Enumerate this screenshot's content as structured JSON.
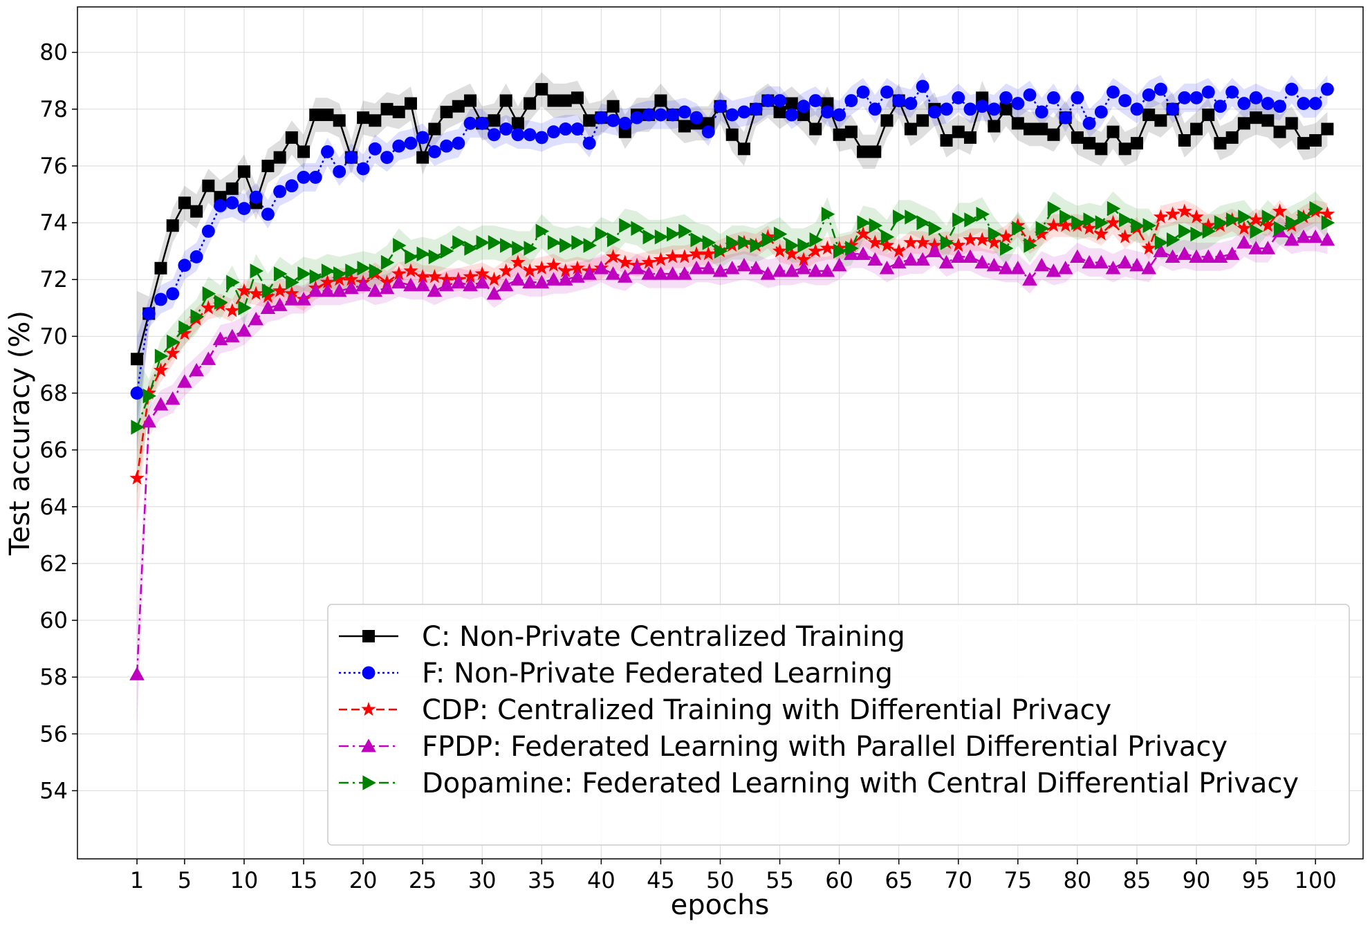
{
  "chart_data": {
    "type": "line",
    "xlabel": "epochs",
    "ylabel": "Test accuracy (%)",
    "xlim": [
      -4,
      104
    ],
    "ylim": [
      51.6,
      81.6
    ],
    "xticks": [
      1,
      5,
      10,
      15,
      20,
      25,
      30,
      35,
      40,
      45,
      50,
      55,
      60,
      65,
      70,
      75,
      80,
      85,
      90,
      95,
      100
    ],
    "yticks": [
      54,
      56,
      58,
      60,
      62,
      64,
      66,
      68,
      70,
      72,
      74,
      76,
      78,
      80
    ],
    "grid": true,
    "legend_position": "lower-right",
    "band_note": "shaded bands show variation around each series",
    "series": [
      {
        "name": "C: Non-Private Centralized Training",
        "color": "#000000",
        "marker": "square",
        "linestyle": "solid",
        "band_width": 0.6,
        "values": [
          69.2,
          70.8,
          72.4,
          73.9,
          74.7,
          74.4,
          75.3,
          74.9,
          75.2,
          75.8,
          74.7,
          76.0,
          76.3,
          77.0,
          76.5,
          77.8,
          77.8,
          77.6,
          76.3,
          77.7,
          77.6,
          78.0,
          77.9,
          78.2,
          76.3,
          77.3,
          77.9,
          78.1,
          78.3,
          77.5,
          77.6,
          78.3,
          77.5,
          78.2,
          78.7,
          78.3,
          78.3,
          78.4,
          77.6,
          77.7,
          78.1,
          77.2,
          77.8,
          77.8,
          78.3,
          77.8,
          77.4,
          77.5,
          77.5,
          78.1,
          77.1,
          76.6,
          78.0,
          78.3,
          77.9,
          78.2,
          77.8,
          77.3,
          78.2,
          77.1,
          77.2,
          76.5,
          76.5,
          77.6,
          78.3,
          77.3,
          77.6,
          78.0,
          76.9,
          77.2,
          77.0,
          78.4,
          77.4,
          78.0,
          77.5,
          77.3,
          77.3,
          77.1,
          77.7,
          77.0,
          76.8,
          76.6,
          77.2,
          76.6,
          76.8,
          77.8,
          77.6,
          78.0,
          76.9,
          77.3,
          77.8,
          76.8,
          77.0,
          77.5,
          77.7,
          77.6,
          77.2,
          77.5,
          76.8,
          76.9,
          77.3
        ]
      },
      {
        "name": "F: Non-Private Federated Learning",
        "color": "#0000ff",
        "marker": "circle",
        "linestyle": "dotted",
        "band_width": 0.5,
        "values": [
          68.0,
          70.8,
          71.3,
          71.5,
          72.5,
          72.8,
          73.7,
          74.6,
          74.7,
          74.5,
          74.9,
          74.3,
          75.1,
          75.3,
          75.6,
          75.6,
          76.5,
          75.8,
          76.3,
          75.9,
          76.6,
          76.3,
          76.7,
          76.8,
          77.0,
          76.5,
          76.7,
          76.8,
          77.5,
          77.5,
          77.1,
          77.3,
          77.1,
          77.1,
          77.0,
          77.2,
          77.3,
          77.3,
          76.8,
          77.7,
          77.6,
          77.5,
          77.7,
          77.8,
          77.8,
          77.8,
          77.9,
          77.7,
          77.2,
          78.1,
          77.8,
          77.9,
          78.0,
          78.3,
          78.3,
          77.8,
          78.1,
          78.3,
          77.9,
          77.8,
          78.3,
          78.6,
          78.0,
          78.6,
          78.3,
          78.2,
          78.8,
          77.9,
          78.0,
          78.4,
          78.0,
          78.1,
          78.0,
          78.4,
          78.2,
          78.5,
          77.9,
          78.4,
          77.7,
          78.4,
          77.5,
          77.9,
          78.6,
          78.3,
          78.0,
          78.5,
          78.7,
          78.0,
          78.4,
          78.4,
          78.6,
          78.1,
          78.6,
          78.2,
          78.4,
          78.2,
          78.1,
          78.7,
          78.2,
          78.2,
          78.7
        ]
      },
      {
        "name": "CDP: Centralized Training with Differential Privacy",
        "color": "#ff0000",
        "marker": "star",
        "linestyle": "dashed",
        "band_width": 0.4,
        "values": [
          65.0,
          68.0,
          68.8,
          69.4,
          70.1,
          70.6,
          71.0,
          71.1,
          70.9,
          71.6,
          71.5,
          71.4,
          71.6,
          71.5,
          71.3,
          71.7,
          71.9,
          72.0,
          72.0,
          71.9,
          72.2,
          71.9,
          72.2,
          72.3,
          72.1,
          72.1,
          72.0,
          72.0,
          72.1,
          72.2,
          72.0,
          72.3,
          72.6,
          72.3,
          72.4,
          72.5,
          72.3,
          72.4,
          72.3,
          72.4,
          72.8,
          72.6,
          72.5,
          72.6,
          72.7,
          72.8,
          72.8,
          72.9,
          72.9,
          73.0,
          73.2,
          73.3,
          73.2,
          73.5,
          73.0,
          72.9,
          72.7,
          73.0,
          73.1,
          73.1,
          73.2,
          73.6,
          73.3,
          73.2,
          73.0,
          73.3,
          73.3,
          73.2,
          73.3,
          73.2,
          73.4,
          73.4,
          73.3,
          73.5,
          73.9,
          73.3,
          73.6,
          73.9,
          73.9,
          73.9,
          73.8,
          73.6,
          74.0,
          73.5,
          73.8,
          73.1,
          74.2,
          74.3,
          74.4,
          74.2,
          73.9,
          73.9,
          74.1,
          73.8,
          74.1,
          73.9,
          74.4,
          73.9,
          74.2,
          74.4,
          74.3
        ]
      },
      {
        "name": "FPDP: Federated Learning with Parallel Differential Privacy",
        "color": "#bf00bf",
        "marker": "triangle-up",
        "linestyle": "dashdot",
        "band_width": 0.5,
        "values": [
          58.1,
          67.0,
          67.6,
          67.8,
          68.4,
          68.8,
          69.2,
          69.9,
          70.0,
          70.2,
          70.6,
          71.0,
          71.1,
          71.3,
          71.3,
          71.6,
          71.6,
          71.6,
          71.7,
          71.8,
          71.6,
          71.7,
          71.9,
          71.8,
          71.8,
          71.6,
          71.8,
          71.9,
          71.8,
          71.9,
          71.5,
          71.8,
          72.0,
          71.9,
          71.9,
          72.0,
          72.0,
          72.1,
          72.2,
          72.4,
          72.2,
          72.1,
          72.4,
          72.2,
          72.2,
          72.2,
          72.2,
          72.4,
          72.4,
          72.3,
          72.4,
          72.5,
          72.4,
          72.2,
          72.3,
          72.3,
          72.4,
          72.3,
          72.3,
          72.5,
          72.9,
          72.9,
          72.7,
          72.4,
          72.6,
          72.7,
          72.7,
          73.0,
          72.6,
          72.8,
          72.8,
          72.6,
          72.5,
          72.4,
          72.4,
          72.0,
          72.5,
          72.3,
          72.4,
          72.8,
          72.6,
          72.6,
          72.4,
          72.6,
          72.5,
          72.4,
          73.0,
          72.8,
          72.9,
          72.8,
          72.8,
          72.8,
          72.9,
          73.3,
          73.1,
          73.1,
          73.7,
          73.4,
          73.5,
          73.5,
          73.4
        ]
      },
      {
        "name": "Dopamine: Federated Learning with Central Differential Privacy",
        "color": "#008000",
        "marker": "triangle-right",
        "linestyle": "dashdot",
        "band_width": 0.6,
        "values": [
          66.8,
          67.9,
          69.3,
          69.8,
          70.3,
          70.7,
          71.5,
          71.2,
          71.9,
          71.0,
          72.3,
          71.6,
          72.2,
          71.9,
          72.2,
          72.1,
          72.3,
          72.2,
          72.3,
          72.4,
          72.3,
          72.6,
          73.2,
          72.8,
          72.9,
          72.8,
          73.0,
          73.3,
          73.1,
          73.3,
          73.3,
          73.2,
          73.1,
          73.1,
          73.7,
          73.3,
          73.2,
          73.3,
          73.2,
          73.6,
          73.4,
          73.9,
          73.8,
          73.5,
          73.5,
          73.6,
          73.7,
          73.4,
          73.3,
          73.0,
          73.3,
          73.3,
          73.2,
          73.4,
          73.6,
          73.2,
          73.2,
          73.4,
          74.3,
          73.0,
          73.1,
          74.0,
          73.9,
          73.5,
          74.2,
          74.2,
          74.0,
          73.8,
          73.3,
          74.1,
          74.1,
          74.3,
          73.6,
          73.1,
          73.8,
          73.2,
          73.8,
          74.5,
          74.2,
          74.0,
          74.1,
          74.0,
          74.5,
          74.1,
          73.9,
          73.9,
          73.3,
          73.4,
          73.7,
          73.6,
          73.7,
          74.0,
          74.1,
          74.2,
          73.7,
          74.2,
          73.8,
          74.0,
          74.2,
          74.5,
          74.0
        ]
      }
    ]
  }
}
